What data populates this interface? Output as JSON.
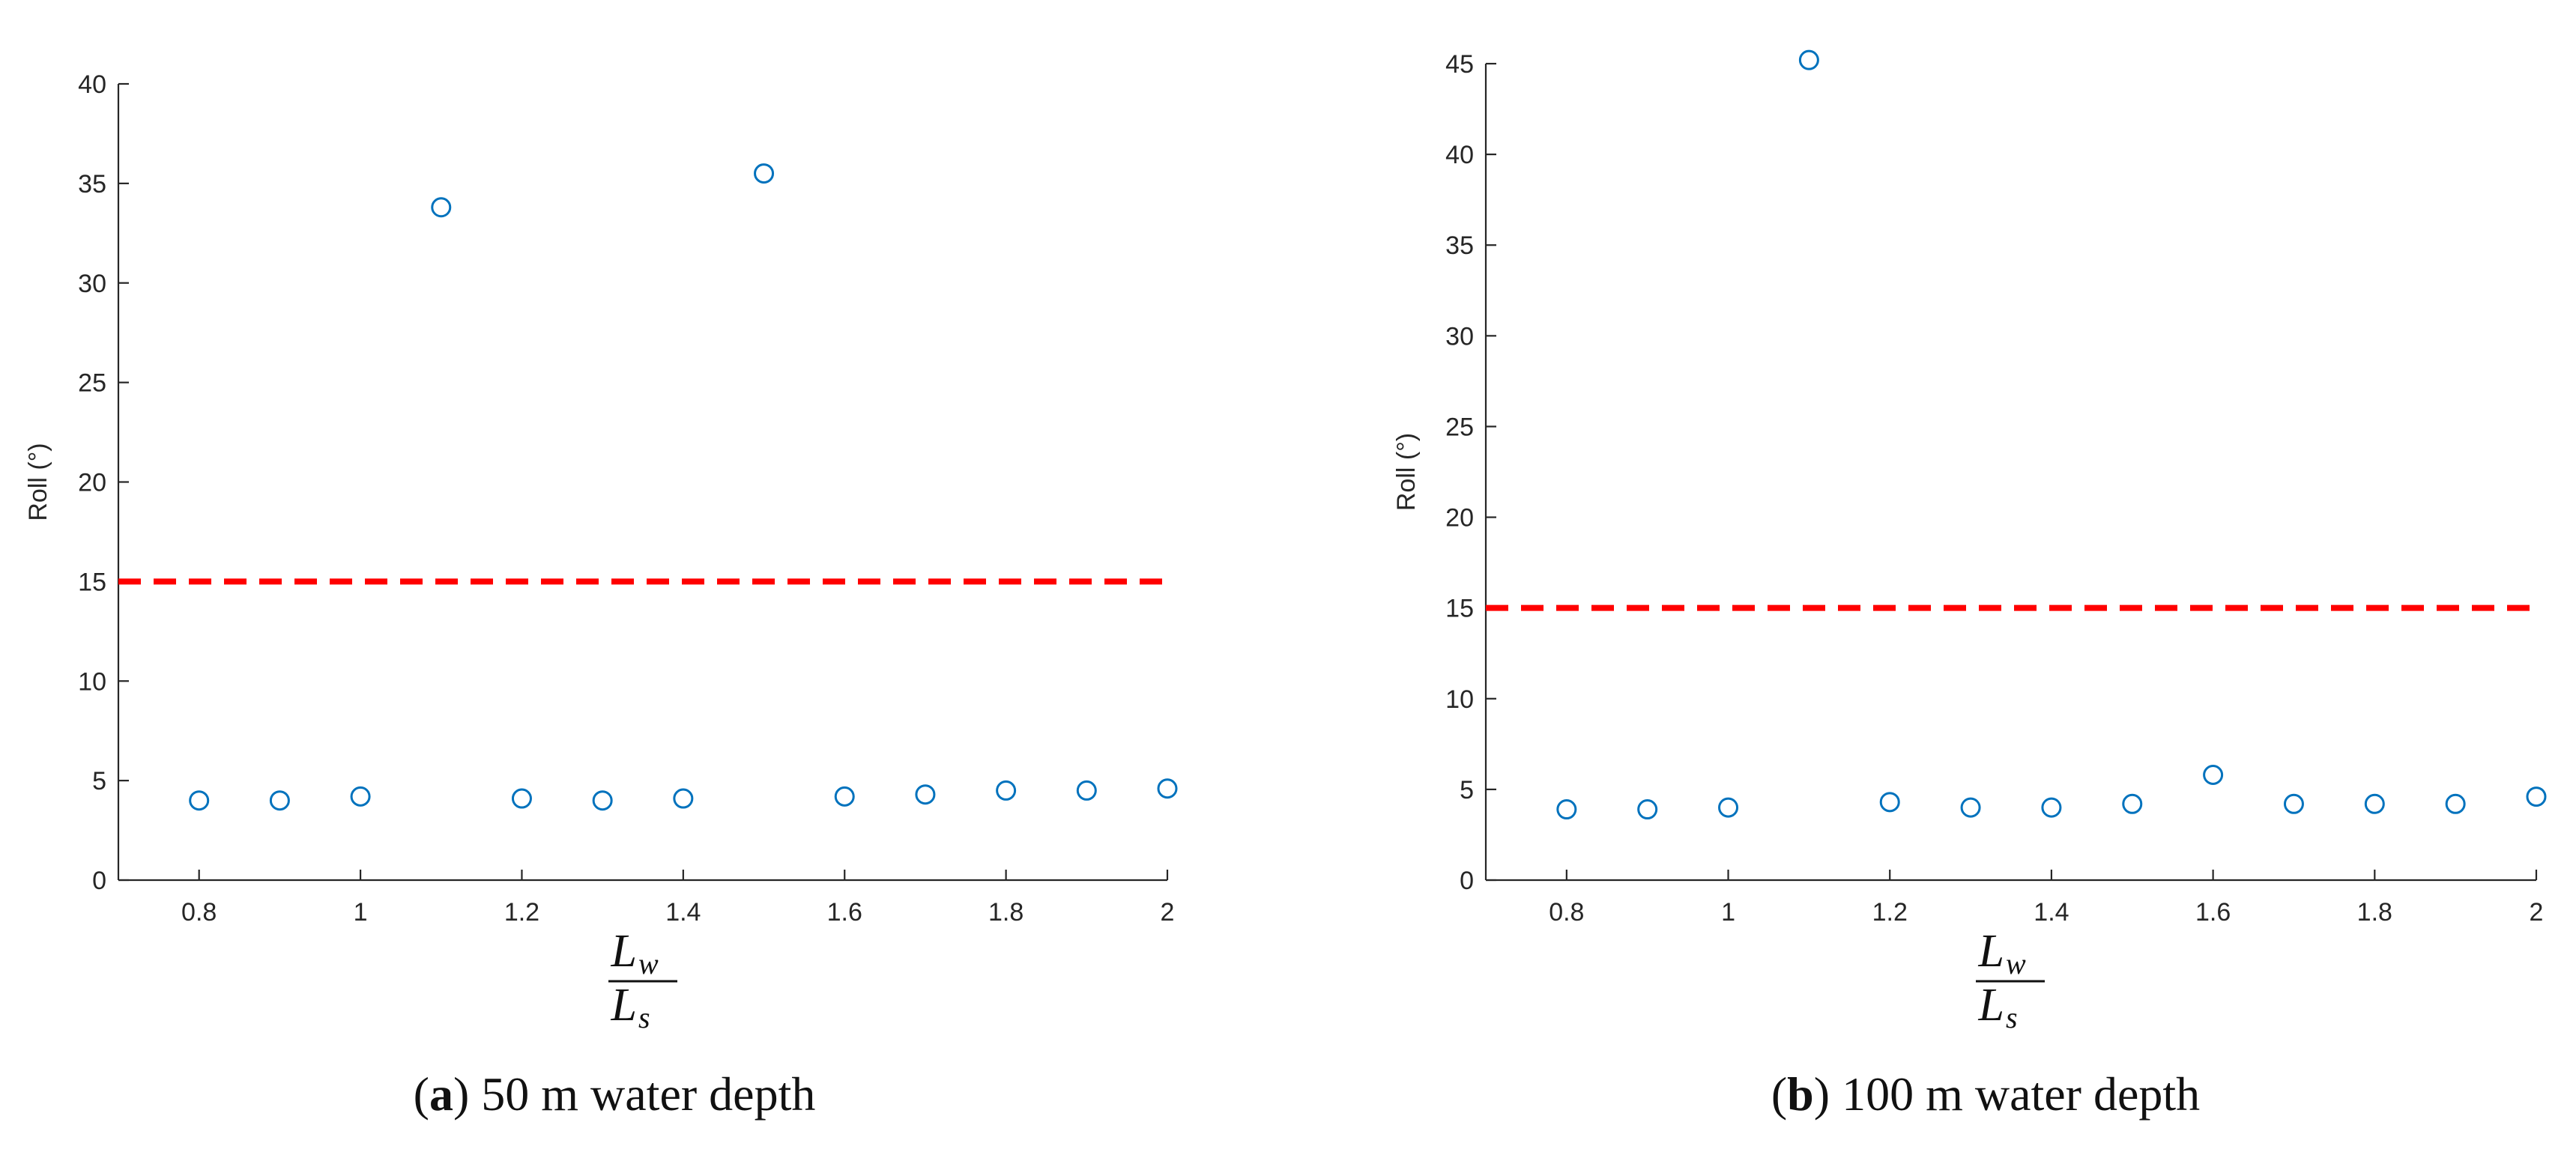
{
  "chart_data": [
    {
      "type": "scatter",
      "caption": {
        "letter": "a",
        "text": "50 m water depth"
      },
      "ylabel": "Roll (°)",
      "xlabel": {
        "numerator": "L",
        "numerator_sub": "w",
        "denominator": "L",
        "denominator_sub": "s"
      },
      "xlim": [
        0.7,
        2.0
      ],
      "ylim": [
        0,
        40
      ],
      "xticks": [
        0.8,
        1,
        1.2,
        1.4,
        1.6,
        1.8,
        2
      ],
      "xtick_labels": [
        "0.8",
        "1",
        "1.2",
        "1.4",
        "1.6",
        "1.8",
        "2"
      ],
      "yticks": [
        0,
        5,
        10,
        15,
        20,
        25,
        30,
        35,
        40
      ],
      "ytick_labels": [
        "0",
        "5",
        "10",
        "15",
        "20",
        "25",
        "30",
        "35",
        "40"
      ],
      "marker_color": "#0072BD",
      "threshold": {
        "y": 15,
        "x_from": 0.7,
        "x_to": 2.0,
        "color": "#FF0000",
        "style": "dashed"
      },
      "x": [
        0.8,
        0.9,
        1.0,
        1.1,
        1.2,
        1.3,
        1.4,
        1.5,
        1.6,
        1.7,
        1.8,
        1.9,
        2.0
      ],
      "y": [
        4.0,
        4.0,
        4.2,
        33.8,
        4.1,
        4.0,
        4.1,
        35.5,
        4.2,
        4.3,
        4.5,
        4.5,
        4.6
      ]
    },
    {
      "type": "scatter",
      "caption": {
        "letter": "b",
        "text": "100 m water depth"
      },
      "ylabel": "Roll (°)",
      "xlabel": {
        "numerator": "L",
        "numerator_sub": "w",
        "denominator": "L",
        "denominator_sub": "s"
      },
      "xlim": [
        0.7,
        2.0
      ],
      "ylim": [
        0,
        45
      ],
      "xticks": [
        0.8,
        1,
        1.2,
        1.4,
        1.6,
        1.8,
        2
      ],
      "xtick_labels": [
        "0.8",
        "1",
        "1.2",
        "1.4",
        "1.6",
        "1.8",
        "2"
      ],
      "yticks": [
        0,
        5,
        10,
        15,
        20,
        25,
        30,
        35,
        40,
        45
      ],
      "ytick_labels": [
        "0",
        "5",
        "10",
        "15",
        "20",
        "25",
        "30",
        "35",
        "40",
        "45"
      ],
      "marker_color": "#0072BD",
      "threshold": {
        "y": 15,
        "x_from": 0.7,
        "x_to": 2.0,
        "color": "#FF0000",
        "style": "dashed"
      },
      "x": [
        0.8,
        0.9,
        1.0,
        1.1,
        1.2,
        1.3,
        1.4,
        1.5,
        1.6,
        1.7,
        1.8,
        1.9,
        2.0
      ],
      "y": [
        3.9,
        3.9,
        4.0,
        45.2,
        4.3,
        4.0,
        4.0,
        4.2,
        5.8,
        4.2,
        4.2,
        4.2,
        4.6
      ]
    }
  ]
}
